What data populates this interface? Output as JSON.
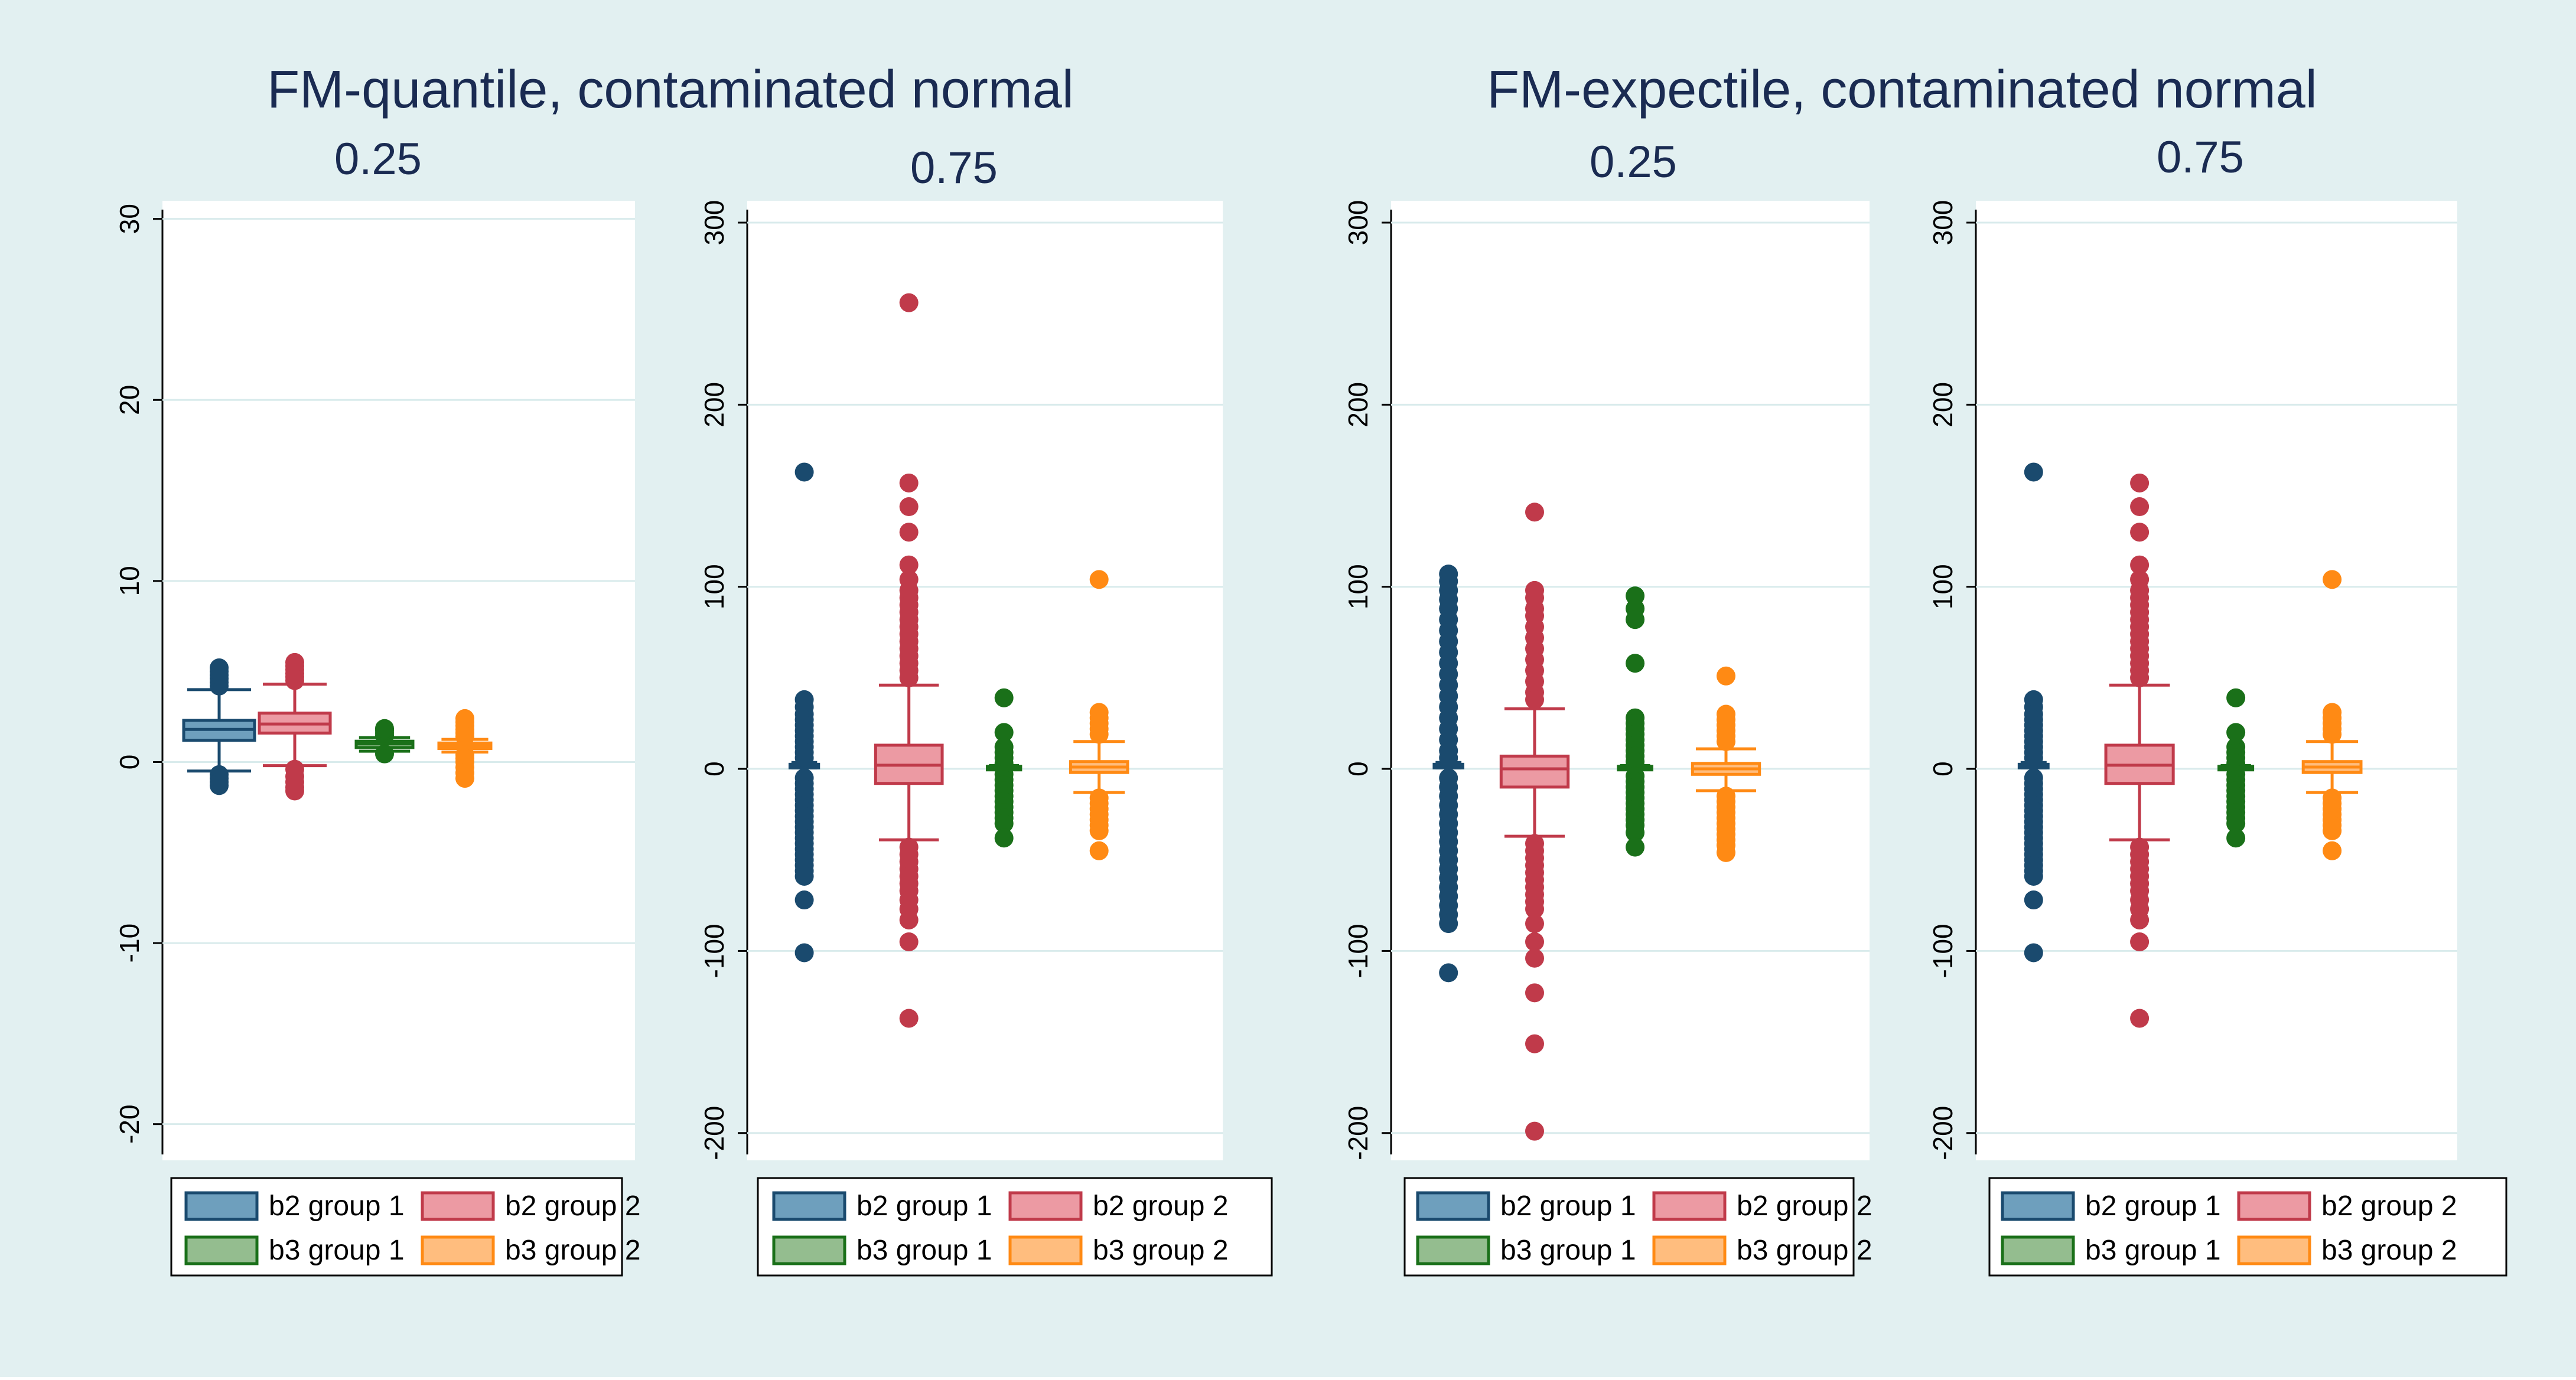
{
  "colors": {
    "outer_background": "#e2f0f1",
    "panel_background": "#ffffff",
    "gridline": "#d9ebec",
    "title_text": "#1a2b52",
    "axis_text": "#000000",
    "b2_group1": "#1a4a6e",
    "b2_group1_fill": "#6e9fbd",
    "b2_group2": "#c03a4a",
    "b2_group2_fill": "#ec9aa3",
    "b3_group1": "#1a7019",
    "b3_group1_fill": "#94bd8f",
    "b3_group2": "#ff8a14",
    "b3_group2_fill": "#ffbd7e"
  },
  "sections": [
    {
      "title": "FM-quantile, contaminated normal"
    },
    {
      "title": "FM-expectile, contaminated normal"
    }
  ],
  "legend_labels": {
    "p1": [
      "b2 group 1",
      "b2 group 2",
      "b3 group 1",
      "b3 group 2"
    ],
    "p2": [
      "b2 group 1",
      "b2 group 2",
      "b3 group 1",
      "b3 group 2"
    ],
    "p3": [
      "b2 group 1",
      "b2 group 2",
      "b3 group 1",
      "b3 group 2"
    ],
    "p4": [
      "b2 group 1",
      "b2 group 2",
      "b3 group 1",
      "b3 group 2"
    ]
  },
  "chart_data": [
    {
      "type": "box",
      "section": "FM-quantile, contaminated normal",
      "title": "0.25",
      "ylim": [
        -22,
        31
      ],
      "yticks": [
        "-20",
        "-10",
        "0",
        "10",
        "20",
        "30"
      ],
      "series": [
        {
          "name": "b2 group 1",
          "q1": 1.2,
          "median": 1.8,
          "q3": 2.3,
          "whisker_low": -0.5,
          "whisker_high": 4.0,
          "outliers": [
            4.2,
            4.4,
            4.6,
            4.8,
            5.0,
            5.2,
            -0.7,
            -0.9,
            -1.1,
            -1.3
          ]
        },
        {
          "name": "b2 group 2",
          "q1": 1.6,
          "median": 2.1,
          "q3": 2.7,
          "whisker_low": -0.2,
          "whisker_high": 4.3,
          "outliers": [
            4.5,
            4.7,
            4.9,
            5.1,
            5.3,
            5.5,
            -0.4,
            -0.8,
            -1.1,
            -1.4,
            -1.6
          ]
        },
        {
          "name": "b3 group 1",
          "q1": 0.8,
          "median": 1.0,
          "q3": 1.15,
          "whisker_low": 0.6,
          "whisker_high": 1.35,
          "outliers": [
            1.45,
            1.6,
            1.75,
            1.85,
            0.45
          ]
        },
        {
          "name": "b3 group 2",
          "q1": 0.75,
          "median": 0.9,
          "q3": 1.05,
          "whisker_low": 0.55,
          "whisker_high": 1.25,
          "outliers": [
            1.4,
            1.6,
            1.8,
            2.0,
            2.2,
            2.4,
            0.4,
            0.2,
            0.0,
            -0.3,
            -0.6,
            -0.9
          ]
        }
      ]
    },
    {
      "type": "box",
      "section": "FM-quantile, contaminated normal",
      "title": "0.75",
      "ylim": [
        -215,
        312
      ],
      "yticks": [
        "-200",
        "-100",
        "0",
        "100",
        "200",
        "300"
      ],
      "series": [
        {
          "name": "b2 group 1",
          "q1": 1.5,
          "median": 2.0,
          "q3": 2.5,
          "whisker_low": 0.5,
          "whisker_high": 3.5,
          "outliers": [
            163,
            38,
            34,
            30,
            27,
            24,
            21,
            18,
            15,
            12,
            9,
            6,
            -5,
            -8,
            -11,
            -14,
            -17,
            -20,
            -23,
            -26,
            -29,
            -32,
            -35,
            -38,
            -41,
            -44,
            -47,
            -50,
            -53,
            -56,
            -59,
            -72,
            -101
          ]
        },
        {
          "name": "b2 group 2",
          "q1": -8,
          "median": 2,
          "q3": 13,
          "whisker_low": -39,
          "whisker_high": 46,
          "outliers": [
            256,
            157,
            144,
            130,
            112,
            104,
            98,
            94,
            90,
            86,
            82,
            78,
            74,
            70,
            66,
            62,
            58,
            54,
            50,
            -43,
            -47,
            -51,
            -55,
            -59,
            -63,
            -67,
            -72,
            -77,
            -83,
            -95,
            -137
          ]
        },
        {
          "name": "b3 group 1",
          "q1": 0.6,
          "median": 1.0,
          "q3": 1.4,
          "whisker_low": 0.2,
          "whisker_high": 1.8,
          "outliers": [
            39,
            20,
            12,
            9,
            6,
            3,
            -3,
            -6,
            -9,
            -12,
            -15,
            -18,
            -21,
            -24,
            -27,
            -30,
            -38
          ]
        },
        {
          "name": "b3 group 2",
          "q1": -2,
          "median": 1,
          "q3": 4,
          "whisker_low": -13,
          "whisker_high": 15,
          "outliers": [
            104,
            31,
            28,
            25,
            22,
            19,
            -16,
            -19,
            -22,
            -25,
            -28,
            -31,
            -34,
            -45
          ]
        }
      ]
    },
    {
      "type": "box",
      "section": "FM-expectile, contaminated normal",
      "title": "0.25",
      "ylim": [
        -215,
        312
      ],
      "yticks": [
        "-200",
        "-100",
        "0",
        "100",
        "200",
        "300"
      ],
      "series": [
        {
          "name": "b2 group 1",
          "q1": 1.5,
          "median": 2.0,
          "q3": 2.5,
          "whisker_low": 0.5,
          "whisker_high": 3.5,
          "outliers": [
            107,
            103,
            98,
            93,
            88,
            82,
            76,
            70,
            64,
            58,
            52,
            46,
            40,
            34,
            28,
            22,
            16,
            10,
            6,
            -5,
            -10,
            -15,
            -20,
            -25,
            -30,
            -35,
            -40,
            -45,
            -50,
            -55,
            -60,
            -65,
            -70,
            -75,
            -80,
            -85,
            -112
          ]
        },
        {
          "name": "b2 group 2",
          "q1": -10,
          "median": 0,
          "q3": 7,
          "whisker_low": -37,
          "whisker_high": 33,
          "outliers": [
            141,
            98,
            94,
            88,
            84,
            78,
            72,
            66,
            60,
            54,
            48,
            42,
            38,
            -41,
            -45,
            -49,
            -53,
            -57,
            -61,
            -65,
            -69,
            -73,
            -77,
            -85,
            -95,
            -104,
            -123,
            -151,
            -199
          ]
        },
        {
          "name": "b3 group 1",
          "q1": 0.6,
          "median": 1.0,
          "q3": 1.4,
          "whisker_low": 0.2,
          "whisker_high": 1.8,
          "outliers": [
            95,
            88,
            82,
            58,
            28,
            25,
            22,
            19,
            16,
            13,
            10,
            7,
            4,
            -4,
            -7,
            -10,
            -13,
            -16,
            -19,
            -22,
            -25,
            -28,
            -31,
            -35,
            -43
          ]
        },
        {
          "name": "b3 group 2",
          "q1": -3,
          "median": 0,
          "q3": 3,
          "whisker_low": -12,
          "whisker_high": 11,
          "outliers": [
            51,
            30,
            27,
            24,
            21,
            18,
            15,
            -15,
            -18,
            -21,
            -24,
            -27,
            -30,
            -33,
            -36,
            -39,
            -42,
            -46
          ]
        }
      ]
    },
    {
      "type": "box",
      "section": "FM-expectile, contaminated normal",
      "title": "0.75",
      "ylim": [
        -215,
        312
      ],
      "yticks": [
        "-200",
        "-100",
        "0",
        "100",
        "200",
        "300"
      ],
      "series": [
        {
          "name": "b2 group 1",
          "q1": 1.5,
          "median": 2.0,
          "q3": 2.5,
          "whisker_low": 0.5,
          "whisker_high": 3.5,
          "outliers": [
            163,
            38,
            34,
            30,
            27,
            24,
            21,
            18,
            15,
            12,
            9,
            6,
            -5,
            -8,
            -11,
            -14,
            -17,
            -20,
            -23,
            -26,
            -29,
            -32,
            -35,
            -38,
            -41,
            -44,
            -47,
            -50,
            -53,
            -56,
            -59,
            -72,
            -101
          ]
        },
        {
          "name": "b2 group 2",
          "q1": -8,
          "median": 2,
          "q3": 13,
          "whisker_low": -39,
          "whisker_high": 46,
          "outliers": [
            157,
            144,
            130,
            112,
            104,
            98,
            94,
            90,
            86,
            82,
            78,
            74,
            70,
            66,
            62,
            58,
            54,
            50,
            -43,
            -47,
            -51,
            -55,
            -59,
            -63,
            -67,
            -72,
            -77,
            -83,
            -95,
            -137
          ]
        },
        {
          "name": "b3 group 1",
          "q1": 0.6,
          "median": 1.0,
          "q3": 1.4,
          "whisker_low": 0.2,
          "whisker_high": 1.8,
          "outliers": [
            39,
            20,
            12,
            9,
            6,
            3,
            -3,
            -6,
            -9,
            -12,
            -15,
            -18,
            -21,
            -24,
            -27,
            -30,
            -38
          ]
        },
        {
          "name": "b3 group 2",
          "q1": -2,
          "median": 1,
          "q3": 4,
          "whisker_low": -13,
          "whisker_high": 15,
          "outliers": [
            104,
            31,
            28,
            25,
            22,
            19,
            -16,
            -19,
            -22,
            -25,
            -28,
            -31,
            -34,
            -45
          ]
        }
      ]
    }
  ]
}
